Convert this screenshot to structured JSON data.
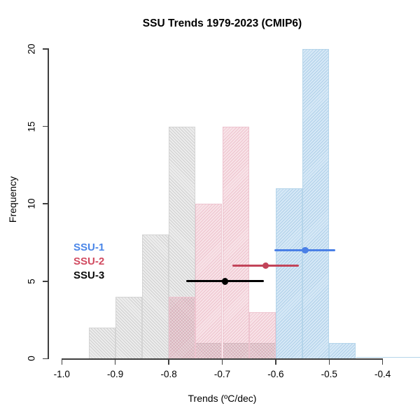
{
  "chart_data": {
    "type": "histogram",
    "title": "SSU Trends 1979-2023 (CMIP6)",
    "xlabel": "Trends (ºC/dec)",
    "ylabel": "Frequency",
    "xlim": [
      -1.0,
      -0.4
    ],
    "ylim": [
      0,
      20
    ],
    "x_ticks": [
      "-1.0",
      "-0.9",
      "-0.8",
      "-0.7",
      "-0.6",
      "-0.5",
      "-0.4"
    ],
    "y_ticks": [
      "0",
      "5",
      "10",
      "15",
      "20"
    ],
    "bin_width": 0.05,
    "grid": false,
    "series": [
      {
        "name": "SSU-3",
        "bin_start": -0.95,
        "counts": [
          2,
          4,
          8,
          15,
          1,
          1,
          1
        ],
        "fill": "rgba(168,168,168,0.22)",
        "hatch": "rgba(110,110,110,0.22)",
        "hatch_angle": "45deg",
        "border": "#d4d4d4"
      },
      {
        "name": "SSU-2",
        "bin_start": -0.8,
        "counts": [
          4,
          10,
          15,
          3
        ],
        "fill": "rgba(224,128,152,0.22)",
        "hatch": "rgba(200,80,112,0.22)",
        "hatch_angle": "135deg",
        "border": "#edc4cf"
      },
      {
        "name": "SSU-1",
        "bin_start": -0.6,
        "counts": [
          11,
          20,
          1
        ],
        "fill": "rgba(120,178,224,0.30)",
        "hatch": "rgba(66,138,196,0.26)",
        "hatch_angle": "135deg",
        "border": "#b5d5ea",
        "baseline_to": -0.33
      }
    ],
    "error_bars": [
      {
        "name": "SSU-1",
        "freq": 7,
        "center": -0.545,
        "low": -0.602,
        "high": -0.488,
        "color": "#4a80e6"
      },
      {
        "name": "SSU-2",
        "freq": 6,
        "center": -0.619,
        "low": -0.681,
        "high": -0.557,
        "color": "#c24459"
      },
      {
        "name": "SSU-3",
        "freq": 5,
        "center": -0.695,
        "low": -0.767,
        "high": -0.622,
        "color": "#000000"
      }
    ],
    "legend": {
      "position": "left-middle",
      "items": [
        {
          "label": "SSU-1",
          "color": "#4a86e8"
        },
        {
          "label": "SSU-2",
          "color": "#d14a60"
        },
        {
          "label": "SSU-3",
          "color": "#0a0a0a"
        }
      ]
    }
  }
}
